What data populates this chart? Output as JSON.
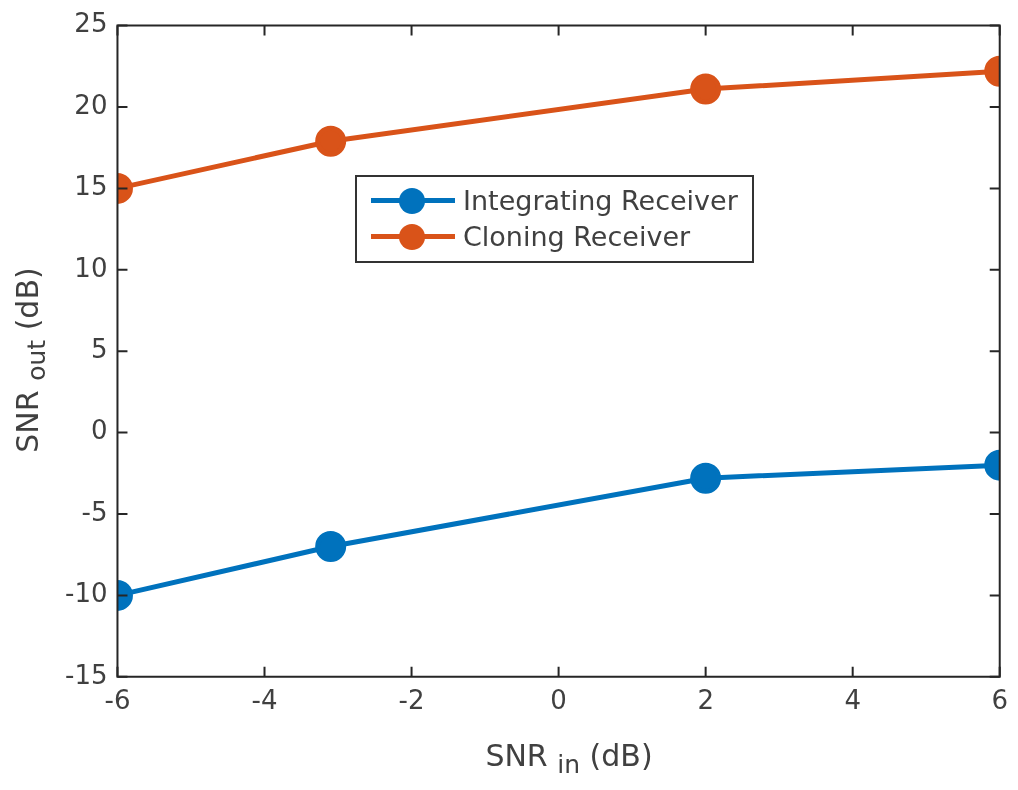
{
  "chart_data": {
    "type": "line",
    "xlabel": "SNR $_{in}$ (dB)",
    "ylabel": "SNR $_{out}$ (dB)",
    "series": [
      {
        "name": "Integrating Receiver",
        "color": "#0072bd",
        "x": [
          -6,
          -3.1,
          2,
          6
        ],
        "values": [
          -10,
          -7,
          -2.8,
          -2
        ]
      },
      {
        "name": "Cloning Receiver",
        "color": "#d95319",
        "x": [
          -6,
          -3.1,
          2,
          6
        ],
        "values": [
          15,
          17.9,
          21.1,
          22.2
        ]
      }
    ],
    "xlim": [
      -6,
      6
    ],
    "xticks": [
      -6,
      -4,
      -2,
      0,
      2,
      4,
      6
    ],
    "ylim": [
      -15,
      25
    ],
    "yticks": [
      -15,
      -10,
      -5,
      0,
      5,
      10,
      15,
      20,
      25
    ],
    "grid": false,
    "legend": "top",
    "marker": "circle",
    "line_style": "solid"
  }
}
